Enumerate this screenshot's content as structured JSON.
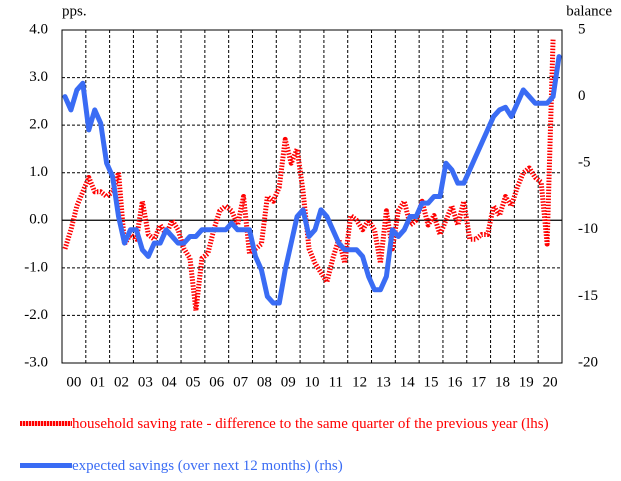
{
  "chart_data": {
    "type": "line",
    "ylabel": "pps.",
    "y2label": "balance",
    "categories": [
      "00",
      null,
      null,
      null,
      "01",
      null,
      null,
      null,
      "02",
      null,
      null,
      null,
      "03",
      null,
      null,
      null,
      "04",
      null,
      null,
      null,
      "05",
      null,
      null,
      null,
      "06",
      null,
      null,
      null,
      "07",
      null,
      null,
      null,
      "08",
      null,
      null,
      null,
      "09",
      null,
      null,
      null,
      "10",
      null,
      null,
      null,
      "11",
      null,
      null,
      null,
      "12",
      null,
      null,
      null,
      "13",
      null,
      null,
      null,
      "14",
      null,
      null,
      null,
      "15",
      null,
      null,
      null,
      "16",
      null,
      null,
      null,
      "17",
      null,
      null,
      null,
      "18",
      null,
      null,
      null,
      "19",
      null,
      null,
      null,
      "20",
      null,
      null,
      null
    ],
    "series": [
      {
        "name": "household saving rate - difference to the same quarter of the previous year (lhs)",
        "color": "#ff0000",
        "style": "dotted",
        "values": [
          -0.6,
          -0.2,
          0.3,
          0.6,
          0.9,
          0.6,
          0.6,
          0.5,
          0.6,
          1.0,
          -0.5,
          -0.3,
          -0.4,
          0.4,
          -0.3,
          -0.4,
          -0.1,
          -0.3,
          0.0,
          -0.2,
          -0.6,
          -0.8,
          -1.9,
          -0.8,
          -0.7,
          -0.2,
          0.2,
          0.3,
          0.2,
          -0.1,
          0.5,
          -0.7,
          -0.6,
          -0.5,
          0.5,
          0.4,
          0.7,
          1.7,
          1.2,
          1.5,
          0.6,
          -0.6,
          -0.9,
          -1.1,
          -1.3,
          -0.8,
          -0.4,
          -0.9,
          0.1,
          0.0,
          -0.2,
          0.0,
          -0.2,
          -0.9,
          0.2,
          -0.6,
          0.2,
          0.4,
          -0.1,
          0.0,
          0.4,
          -0.1,
          0.1,
          -0.3,
          0.0,
          0.3,
          -0.1,
          0.4,
          -0.4,
          -0.4,
          -0.3,
          -0.3,
          0.3,
          0.1,
          0.5,
          0.3,
          0.7,
          1.0,
          1.1,
          0.9,
          0.8,
          -0.5,
          3.8,
          null
        ]
      },
      {
        "name": "expected savings (over next 12 months) (rhs)",
        "color": "#3a6cf4",
        "style": "solid",
        "axis": "y2",
        "values": [
          0,
          -1,
          0.5,
          1,
          -2.5,
          -1,
          -2,
          -5,
          -6,
          -9,
          -11,
          -10,
          -10,
          -11.5,
          -12,
          -11,
          -11,
          -10,
          -10.5,
          -11,
          -11,
          -10.5,
          -10.5,
          -10,
          -10,
          -10,
          -10,
          -10,
          -9.5,
          -10,
          -10,
          -10,
          -12,
          -13,
          -15,
          -15.5,
          -15.5,
          -13,
          -11,
          -9,
          -8.5,
          -10.5,
          -10,
          -8.5,
          -9,
          -10,
          -11,
          -11.5,
          -11.5,
          -11.5,
          -12,
          -13.5,
          -14.5,
          -14.5,
          -13.5,
          -10,
          -10.5,
          -10,
          -9,
          -9,
          -8,
          -8,
          -7.5,
          -7.5,
          -5,
          -5.5,
          -6.5,
          -6.5,
          -5.5,
          -4.5,
          -3.5,
          -2.5,
          -1.5,
          -1,
          -0.8,
          -1.5,
          -0.5,
          0.5,
          0,
          -0.5,
          -0.5,
          -0.5,
          0,
          3
        ]
      }
    ],
    "ylim": [
      -3,
      4
    ],
    "yticks": [
      {
        "value": -3,
        "label": "-3.0"
      },
      {
        "value": -2,
        "label": "-2.0"
      },
      {
        "value": -1,
        "label": "-1.0"
      },
      {
        "value": 0,
        "label": "0.0"
      },
      {
        "value": 1,
        "label": "1.0"
      },
      {
        "value": 2,
        "label": "2.0"
      },
      {
        "value": 3,
        "label": "3.0"
      },
      {
        "value": 4,
        "label": "4.0"
      }
    ],
    "y2lim": [
      -20,
      5
    ],
    "y2ticks": [
      -20,
      -15,
      -10,
      -5,
      0,
      5
    ],
    "grid": true
  }
}
